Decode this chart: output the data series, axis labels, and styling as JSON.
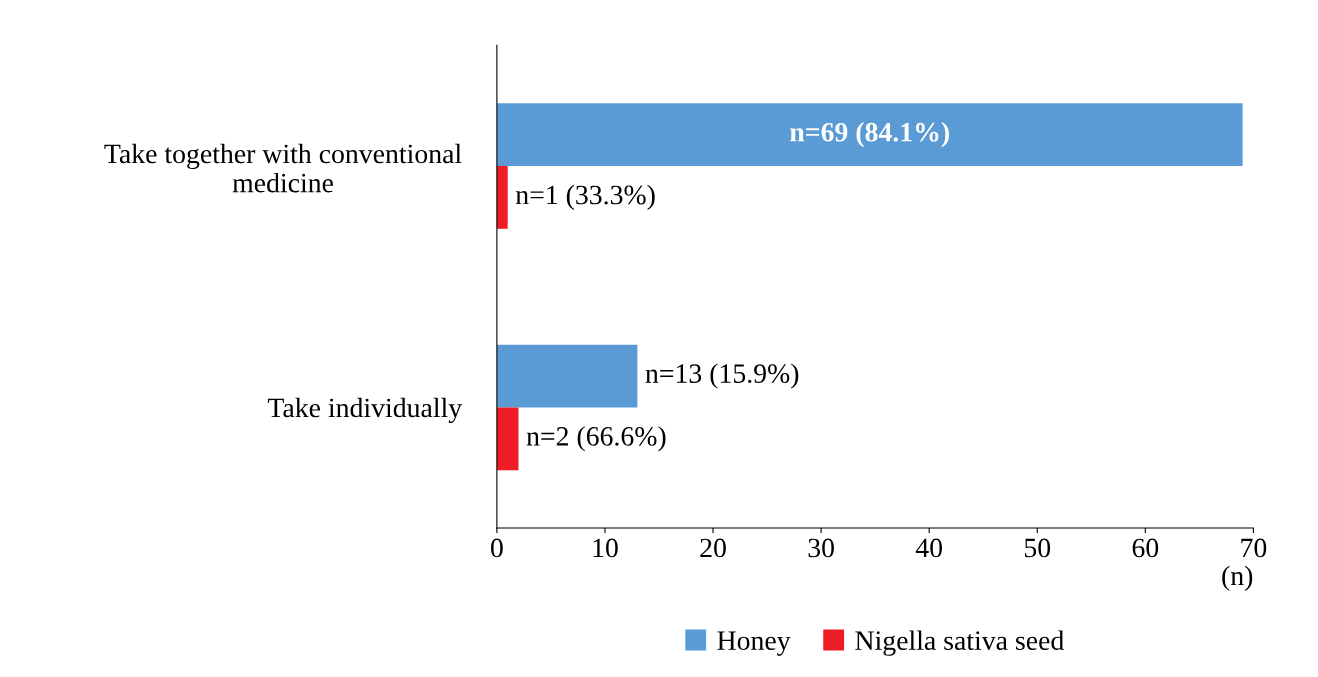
{
  "chart_data": {
    "type": "bar",
    "orientation": "horizontal",
    "xlabel": "(n)",
    "categories": [
      "Take together with conventional\nmedicine",
      "Take individually"
    ],
    "series": [
      {
        "name": "Honey",
        "color": "#5b9bd5",
        "values": [
          69,
          13
        ],
        "value_labels": [
          "n=69 (84.1%)",
          "n=13 (15.9%)"
        ]
      },
      {
        "name": "Nigella sativa seed",
        "color": "#ee1c25",
        "values": [
          1,
          2
        ],
        "value_labels": [
          "n=1 (33.3%)",
          "n=2 (66.6%)"
        ]
      }
    ],
    "xlim": [
      0,
      70
    ],
    "xticks": [
      0,
      10,
      20,
      30,
      40,
      50,
      60,
      70
    ],
    "grid": false,
    "legend": "bottom"
  }
}
